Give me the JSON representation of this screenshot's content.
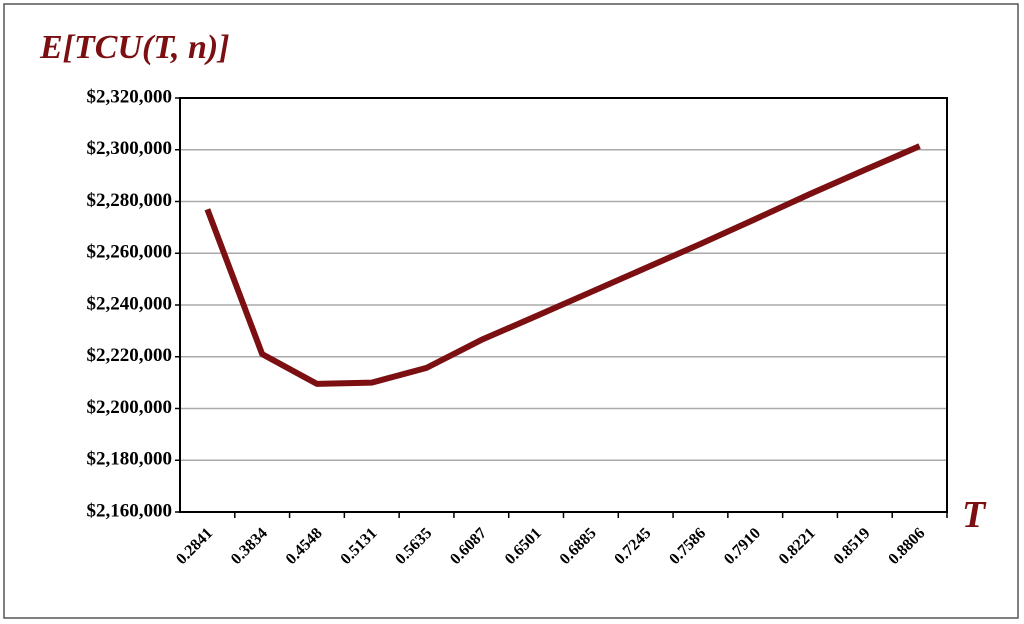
{
  "chart_data": {
    "type": "line",
    "y_label": "E[TCU(T, n)]",
    "x_label": "T",
    "categories": [
      "0.2841",
      "0.3834",
      "0.4548",
      "0.5131",
      "0.5635",
      "0.6087",
      "0.6501",
      "0.6885",
      "0.7245",
      "0.7586",
      "0.7910",
      "0.8221",
      "0.8519",
      "0.8806"
    ],
    "series": [
      {
        "color": "#7b0f12",
        "values": [
          2277000,
          2221000,
          2209500,
          2210000,
          2215700,
          2226500,
          2235700,
          2245000,
          2254300,
          2263600,
          2273200,
          2282900,
          2292200,
          2301400
        ]
      }
    ],
    "ylim": [
      2160000,
      2320000
    ],
    "yticks": [
      {
        "value": 2160000,
        "label": "$2,160,000"
      },
      {
        "value": 2180000,
        "label": "$2,180,000"
      },
      {
        "value": 2200000,
        "label": "$2,200,000"
      },
      {
        "value": 2220000,
        "label": "$2,220,000"
      },
      {
        "value": 2240000,
        "label": "$2,240,000"
      },
      {
        "value": 2260000,
        "label": "$2,260,000"
      },
      {
        "value": 2280000,
        "label": "$2,280,000"
      },
      {
        "value": 2300000,
        "label": "$2,300,000"
      },
      {
        "value": 2320000,
        "label": "$2,320,000"
      }
    ],
    "grid": true
  }
}
